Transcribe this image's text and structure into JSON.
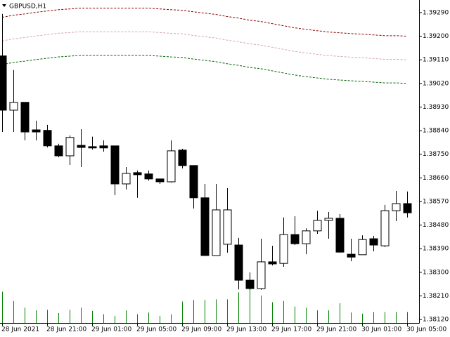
{
  "chart_data": {
    "type": "candlestick",
    "title": "GBPUSD,H1",
    "categories": [
      "28 Jun 2021",
      null,
      null,
      null,
      "28 Jun 21:00",
      null,
      null,
      null,
      "29 Jun 01:00",
      null,
      null,
      null,
      "29 Jun 05:00",
      null,
      null,
      null,
      "29 Jun 09:00",
      null,
      null,
      null,
      "29 Jun 13:00",
      null,
      null,
      null,
      "29 Jun 17:00",
      null,
      null,
      null,
      "29 Jun 21:00",
      null,
      null,
      null,
      "30 Jun 01:00",
      null,
      null,
      null,
      "30 Jun 05:00"
    ],
    "open": [
      1.39125,
      1.38918,
      1.38948,
      1.38843,
      1.38841,
      1.38782,
      1.38744,
      1.38784,
      1.38779,
      1.38782,
      1.38782,
      1.38637,
      1.3868,
      1.38675,
      1.38656,
      1.38645,
      1.38766,
      1.38707,
      1.38584,
      1.38364,
      1.38407,
      1.38404,
      1.3827,
      1.38238,
      1.3834,
      1.38334,
      1.38444,
      1.38409,
      1.38458,
      1.38498,
      1.38506,
      1.38369,
      1.38367,
      1.38428,
      1.38401,
      1.38535,
      1.38562
    ],
    "high": [
      1.39285,
      1.39071,
      1.38948,
      1.38878,
      1.38862,
      1.3879,
      1.38822,
      1.38846,
      1.38817,
      1.38803,
      1.38782,
      1.38701,
      1.38688,
      1.38688,
      1.38656,
      1.38803,
      1.38771,
      1.38707,
      1.38637,
      1.38637,
      1.38621,
      1.38431,
      1.383,
      1.38428,
      1.38401,
      1.38509,
      1.38514,
      1.38468,
      1.38535,
      1.3853,
      1.38522,
      1.38428,
      1.38441,
      1.38439,
      1.38557,
      1.3861,
      1.38608
    ],
    "low": [
      1.38835,
      1.38835,
      1.38803,
      1.38803,
      1.38776,
      1.38739,
      1.38709,
      1.38701,
      1.38768,
      1.3876,
      1.38594,
      1.38616,
      1.38584,
      1.3865,
      1.38637,
      1.38642,
      1.38696,
      1.38543,
      1.38364,
      1.38364,
      1.38375,
      1.38235,
      1.38233,
      1.38233,
      1.38326,
      1.38321,
      1.38404,
      1.38369,
      1.38447,
      1.38428,
      1.38375,
      1.38342,
      1.38367,
      1.3838,
      1.38396,
      1.38495,
      1.38509
    ],
    "close": [
      1.38918,
      1.38948,
      1.38835,
      1.38835,
      1.38782,
      1.38744,
      1.38814,
      1.38776,
      1.38774,
      1.38774,
      1.38637,
      1.38677,
      1.38672,
      1.38656,
      1.38645,
      1.38763,
      1.38707,
      1.38584,
      1.38364,
      1.38538,
      1.38538,
      1.3827,
      1.38238,
      1.3834,
      1.38332,
      1.38444,
      1.38409,
      1.38458,
      1.38498,
      1.38506,
      1.38377,
      1.38358,
      1.38425,
      1.38404,
      1.38535,
      1.38562,
      1.38527
    ],
    "volume": [
      57,
      40,
      28,
      23,
      24,
      18,
      24,
      28,
      22,
      16,
      13,
      23,
      16,
      19,
      13,
      16,
      39,
      42,
      42,
      43,
      43,
      56,
      73,
      50,
      38,
      40,
      30,
      28,
      23,
      23,
      36,
      19,
      17,
      20,
      20,
      20,
      20
    ],
    "volume_color": "#008000",
    "up_color": "#ffffff",
    "down_color": "#000000",
    "lines": [
      {
        "color": "#8b0000",
        "values": [
          1.39272,
          1.3928,
          1.39285,
          1.39291,
          1.39296,
          1.39301,
          1.39304,
          1.39307,
          1.39307,
          1.39307,
          1.39307,
          1.39307,
          1.39307,
          1.39307,
          1.39304,
          1.39301,
          1.39299,
          1.39293,
          1.39288,
          1.39283,
          1.39275,
          1.39269,
          1.39261,
          1.39256,
          1.39248,
          1.3924,
          1.39232,
          1.39226,
          1.39221,
          1.39216,
          1.39213,
          1.3921,
          1.39208,
          1.39205,
          1.39202,
          1.39202,
          1.392
        ]
      },
      {
        "color": "#d8a4b4",
        "values": [
          1.39182,
          1.3919,
          1.39195,
          1.39201,
          1.39206,
          1.39211,
          1.39214,
          1.39217,
          1.39217,
          1.39217,
          1.39217,
          1.39217,
          1.39217,
          1.39217,
          1.39214,
          1.39211,
          1.39209,
          1.39203,
          1.39198,
          1.39193,
          1.39185,
          1.39179,
          1.39171,
          1.39166,
          1.39158,
          1.3915,
          1.39142,
          1.39136,
          1.39131,
          1.39126,
          1.39123,
          1.3912,
          1.39118,
          1.39115,
          1.39112,
          1.39112,
          1.3911
        ]
      },
      {
        "color": "#006400",
        "values": [
          1.39092,
          1.391,
          1.39105,
          1.39111,
          1.39116,
          1.39121,
          1.39124,
          1.39127,
          1.39127,
          1.39127,
          1.39127,
          1.39127,
          1.39127,
          1.39127,
          1.39124,
          1.39121,
          1.39119,
          1.39113,
          1.39108,
          1.39103,
          1.39095,
          1.39089,
          1.39081,
          1.39076,
          1.39068,
          1.3906,
          1.39052,
          1.39046,
          1.39041,
          1.39036,
          1.39033,
          1.3903,
          1.39028,
          1.39025,
          1.39022,
          1.39022,
          1.3902
        ]
      }
    ],
    "ylim": [
      1.38107,
      1.39338
    ],
    "yticks": [
      {
        "value": 1.3929,
        "label": "1.39290"
      },
      {
        "value": 1.392,
        "label": "1.39200"
      },
      {
        "value": 1.3911,
        "label": "1.39110"
      },
      {
        "value": 1.3902,
        "label": "1.39020"
      },
      {
        "value": 1.3893,
        "label": "1.38930"
      },
      {
        "value": 1.3884,
        "label": "1.38840"
      },
      {
        "value": 1.3875,
        "label": "1.38750"
      },
      {
        "value": 1.3866,
        "label": "1.38660"
      },
      {
        "value": 1.3857,
        "label": "1.38570"
      },
      {
        "value": 1.3848,
        "label": "1.38480"
      },
      {
        "value": 1.3839,
        "label": "1.38390"
      },
      {
        "value": 1.383,
        "label": "1.38300"
      },
      {
        "value": 1.3821,
        "label": "1.38210"
      },
      {
        "value": 1.3812,
        "label": "1.38120"
      }
    ],
    "grid": false
  }
}
